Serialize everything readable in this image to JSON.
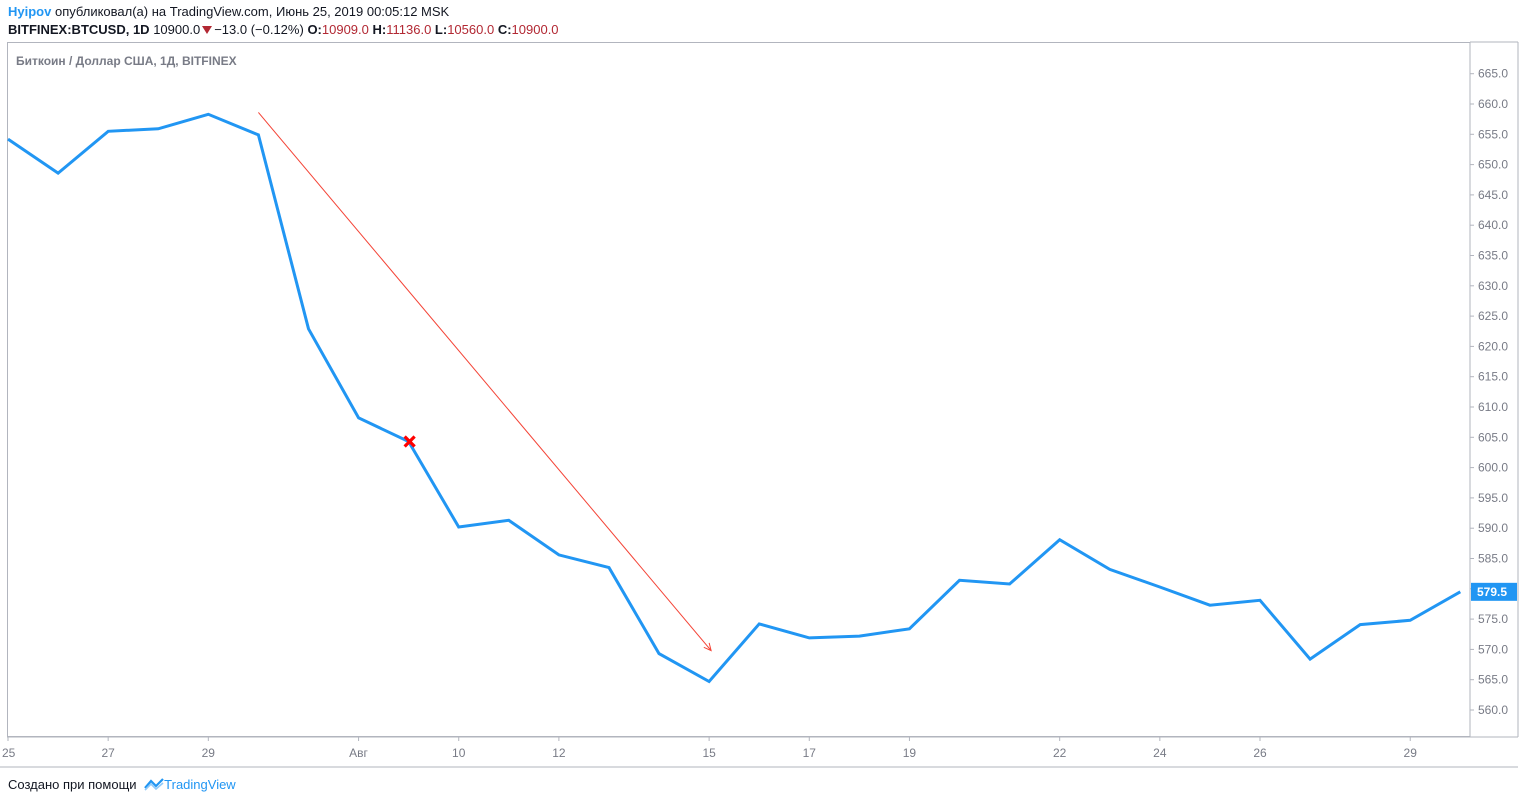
{
  "header": {
    "user": "Hyipov",
    "published": "опубликовал(а) на TradingView.com, Июнь 25, 2019 00:05:12 MSK",
    "symbol": "BITFINEX:BTCUSD, 1D",
    "price": "10900.0",
    "change": "−13.0 (−0.12%)",
    "o_label": "O:",
    "o_value": "10909.0",
    "h_label": "H:",
    "h_value": "11136.0",
    "l_label": "L:",
    "l_value": "10560.0",
    "c_label": "C:",
    "c_value": "10900.0"
  },
  "legend": "Биткоин / Доллар США, 1Д, BITFINEX",
  "footer": {
    "text": "Создано при помощи",
    "brand": "TradingView"
  },
  "colors": {
    "line": "#2196f3",
    "arrow": "#f44336",
    "marker": "#ff0000",
    "axis_text": "#787b86",
    "last_price_bg": "#2196f3"
  },
  "chart_data": {
    "type": "line",
    "x_tick_labels": [
      "25",
      "27",
      "29",
      "Авг",
      "10",
      "12",
      "15",
      "17",
      "19",
      "22",
      "24",
      "26",
      "29"
    ],
    "y_tick_labels": [
      "665.0",
      "660.0",
      "655.0",
      "650.0",
      "645.0",
      "640.0",
      "635.0",
      "630.0",
      "625.0",
      "620.0",
      "615.0",
      "610.0",
      "605.0",
      "600.0",
      "595.0",
      "590.0",
      "585.0",
      "580.0",
      "575.0",
      "570.0",
      "565.0",
      "560.0"
    ],
    "ylim": [
      555.0,
      670.0
    ],
    "last_price": "579.5",
    "x_index_range": [
      0,
      29
    ],
    "series": [
      {
        "x": [
          0,
          1,
          2,
          3,
          4,
          5,
          6,
          7,
          8,
          9,
          10,
          11,
          12,
          13,
          14,
          15,
          16,
          17,
          18,
          19,
          20,
          21,
          22,
          23,
          24,
          25,
          26,
          27,
          28,
          29
        ],
        "values": [
          654.2,
          648.6,
          655.5,
          655.9,
          658.3,
          654.9,
          622.9,
          608.2,
          604.3,
          590.2,
          591.3,
          585.6,
          583.5,
          569.3,
          564.7,
          574.2,
          571.9,
          572.2,
          573.4,
          581.4,
          580.8,
          588.1,
          583.2,
          580.3,
          577.3,
          578.1,
          568.4,
          574.1,
          574.8,
          579.5
        ]
      }
    ],
    "annotations": [
      {
        "type": "arrow",
        "from": [
          5.0,
          658.6
        ],
        "to": [
          14.0,
          569.8
        ]
      },
      {
        "type": "x-marker",
        "at": [
          8.0,
          604.3
        ]
      }
    ],
    "grid": false
  }
}
